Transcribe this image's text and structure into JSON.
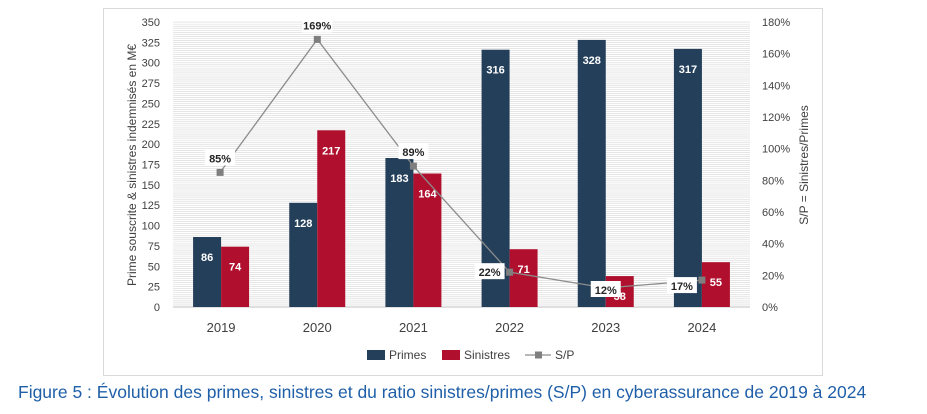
{
  "chart_data": {
    "type": "bar",
    "categories": [
      "2019",
      "2020",
      "2021",
      "2022",
      "2023",
      "2024"
    ],
    "series": [
      {
        "name": "Primes",
        "kind": "bar",
        "color": "#243f5a",
        "values": [
          86,
          128,
          183,
          316,
          328,
          317
        ],
        "labels": [
          "86",
          "128",
          "183",
          "316",
          "328",
          "317"
        ]
      },
      {
        "name": "Sinistres",
        "kind": "bar",
        "color": "#b0102e",
        "values": [
          74,
          217,
          164,
          71,
          38,
          55
        ],
        "labels": [
          "74",
          "217",
          "164",
          "71",
          "38",
          "55"
        ]
      },
      {
        "name": "S/P",
        "kind": "line",
        "axis": "right",
        "color": "#8c8c8c",
        "values": [
          85,
          169,
          89,
          22,
          12,
          17
        ],
        "labels": [
          "85%",
          "169%",
          "89%",
          "22%",
          "12%",
          "17%"
        ]
      }
    ],
    "y_left": {
      "label": "Prime souscrite & sinistres indemnisés en M€",
      "min": 0,
      "max": 350,
      "step": 25
    },
    "y_right": {
      "label": "S/P = Sinistres/Primes",
      "min": 0,
      "max": 180,
      "step": 20,
      "unit": "%"
    },
    "grid": true,
    "legend": {
      "position": "bottom",
      "entries": [
        "Primes",
        "Sinistres",
        "S/P"
      ]
    }
  },
  "caption": "Figure 5 : Évolution des primes, sinistres et du ratio sinistres/primes (S/P) en cyberassurance de 2019 à 2024"
}
